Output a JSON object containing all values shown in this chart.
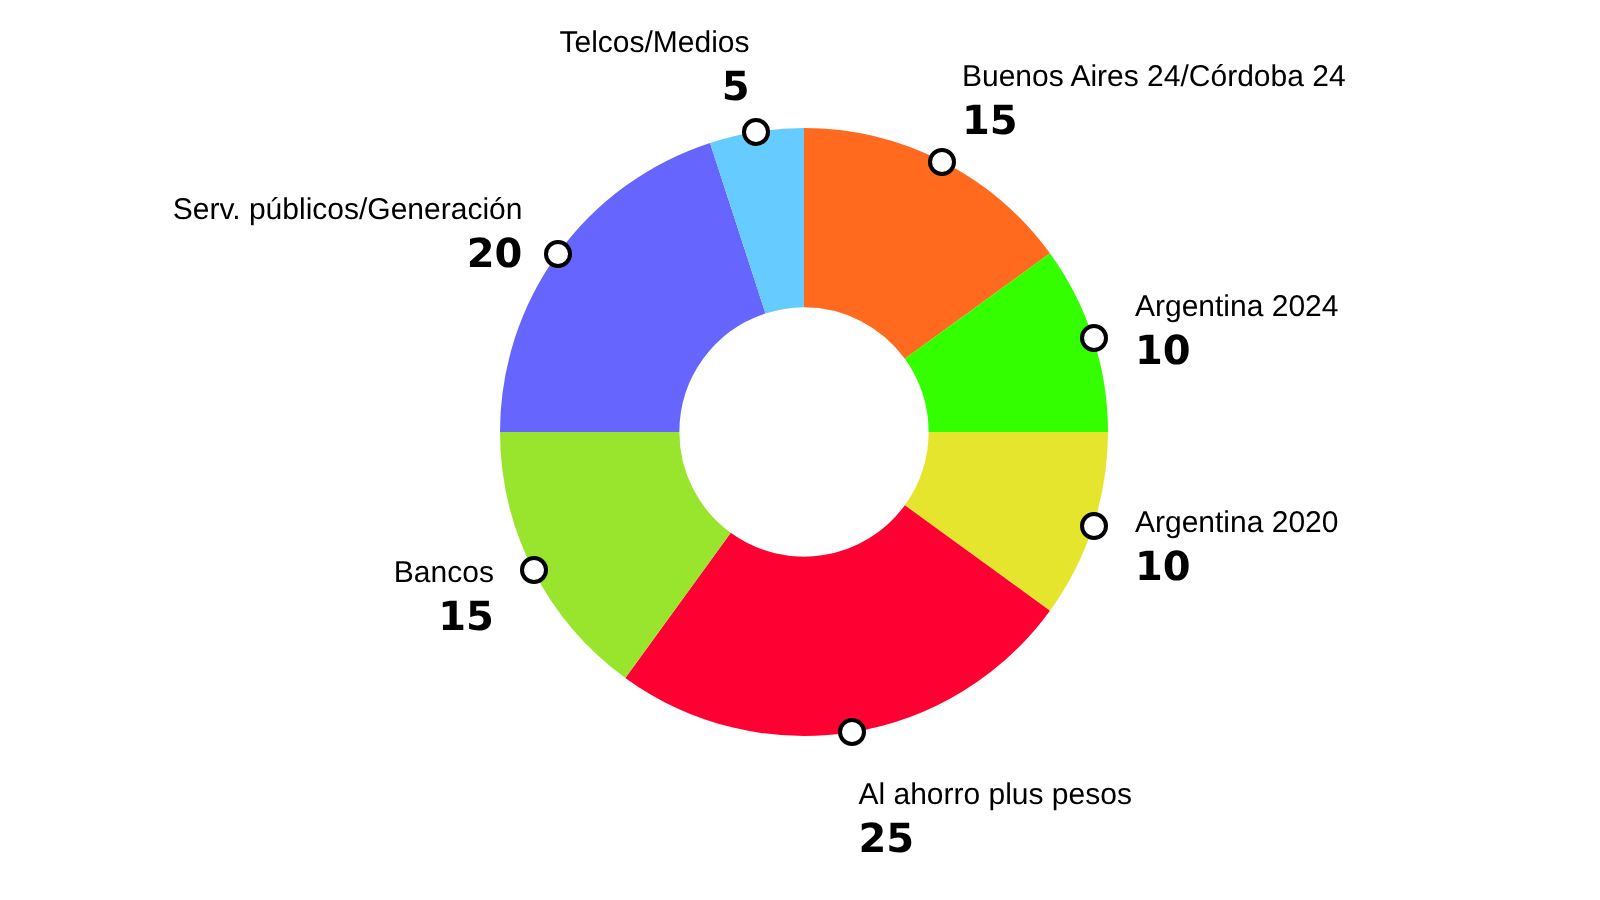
{
  "chart_data": {
    "type": "donut",
    "categories": [
      "Buenos Aires 24/Córdoba 24",
      "Argentina 2024",
      "Argentina 2020",
      "Al ahorro plus pesos",
      "Bancos",
      "Serv. públicos/Generación",
      "Telcos/Medios"
    ],
    "values": [
      15,
      10,
      10,
      25,
      15,
      20,
      5
    ],
    "colors": [
      "#ff6a1f",
      "#33ff00",
      "#e5e52e",
      "#ff0033",
      "#99e52e",
      "#6666ff",
      "#66ccff"
    ],
    "data_labels": true,
    "legend": false
  }
}
